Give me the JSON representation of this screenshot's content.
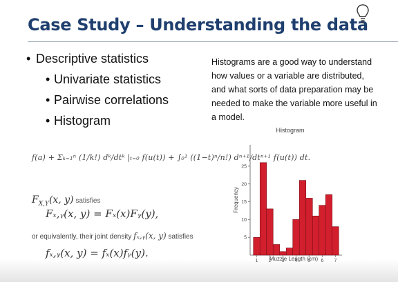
{
  "slide": {
    "title": "Case Study – Understanding the data",
    "bullets": [
      {
        "level": 1,
        "marker": "•",
        "text": "Descriptive statistics"
      },
      {
        "level": 2,
        "marker": "•",
        "text": "Univariate statistics"
      },
      {
        "level": 2,
        "marker": "•",
        "text": "Pairwise correlations"
      },
      {
        "level": 2,
        "marker": "•",
        "text": "Histogram"
      }
    ],
    "description": "Histograms are a good way to understand how values or a variable are distributed, and what sorts of data preparation may be needed to make the variable more useful in a model.",
    "formulas": {
      "taylor": "f(a) + Σₖ₌₁ⁿ (1/k!) dᵏ/dtᵏ |ₜ₌₀ f(u(t)) + ∫₀¹ ((1−t)ⁿ/n!) dⁿ⁺¹/dtⁿ⁺¹ f(u(t)) dt.",
      "line1_math": "F",
      "line1_sub": "X,Y",
      "line1_args": "(x, y)",
      "line1_text": " satisfies",
      "line2": "Fₓ,ᵧ(x, y) = Fₓ(x)Fᵧ(y),",
      "line3_pre": "or equivalently, their joint density ",
      "line3_math": "fₓ,ᵧ(x, y)",
      "line3_post": " satisfies",
      "line4": "fₓ,ᵧ(x, y) = fₓ(x)fᵧ(y)."
    },
    "icons": {
      "top_right": "lightbulb-icon"
    },
    "colors": {
      "title": "#1f3f6e",
      "bar": "#d11f2e"
    }
  },
  "chart_data": {
    "type": "bar",
    "title": "Histogram",
    "xlabel": "Muzzle Length (cm)",
    "ylabel": "Frequency",
    "bin_width": 0.5,
    "bin_starts": [
      0.75,
      1.25,
      1.75,
      2.25,
      2.75,
      3.25,
      3.75,
      4.25,
      4.75,
      5.25,
      5.75,
      6.25,
      6.75
    ],
    "values": [
      5,
      26,
      13,
      3,
      1,
      2,
      10,
      21,
      16,
      11,
      14,
      17,
      8
    ],
    "xlim": [
      0.5,
      7.5
    ],
    "ylim": [
      0,
      31
    ],
    "x_ticks": [
      "1",
      "2",
      "3",
      "4",
      "5",
      "6",
      "7"
    ],
    "y_ticks": [
      "5",
      "10",
      "15",
      "20",
      "25"
    ],
    "grid": false
  }
}
